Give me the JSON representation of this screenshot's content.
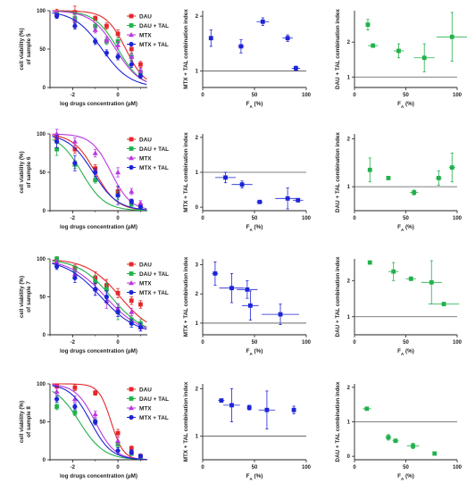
{
  "colors": {
    "DAU": "#e5262b",
    "DAU + TAL": "#22b14c",
    "MTX": "#b936e0",
    "MTX + TAL": "#1c24d6",
    "axis": "#222222",
    "refline": "#555555"
  },
  "legend_labels": [
    "DAU",
    "DAU + TAL",
    "MTX",
    "MTX + TAL"
  ],
  "chart_data": [
    {
      "id": "c1",
      "type": "line",
      "row": 1,
      "col": 1,
      "ylabel": "cell viability (%) of sample 5",
      "xlabel": "log drugs concentration (µM)",
      "xlim": [
        -3,
        1.3
      ],
      "ylim": [
        0,
        100
      ],
      "xticks": [
        "-2",
        "0"
      ],
      "yticks": [
        "0",
        "50",
        "100"
      ],
      "series": [
        {
          "name": "DAU",
          "marker": "square",
          "x": [
            -2.7,
            -1.9,
            -1.0,
            -0.5,
            0,
            0.6,
            1.0
          ],
          "y": [
            98,
            98,
            90,
            80,
            70,
            50,
            30
          ],
          "err": [
            4,
            8,
            3,
            4,
            5,
            5,
            4
          ],
          "curve": {
            "top": 100,
            "bottom": 0,
            "ec50": 0.35,
            "hill": 1.0
          }
        },
        {
          "name": "DAU + TAL",
          "marker": "square",
          "x": [
            -2.7,
            -1.9,
            -1.0,
            -0.5,
            0,
            0.6,
            1.0
          ],
          "y": [
            95,
            90,
            80,
            60,
            60,
            40,
            20
          ],
          "err": [
            3,
            5,
            4,
            4,
            5,
            5,
            3
          ],
          "curve": {
            "top": 100,
            "bottom": 0,
            "ec50": 0.0,
            "hill": 0.85
          }
        },
        {
          "name": "MTX",
          "marker": "triangle",
          "x": [
            -2.7,
            -1.9,
            -1.0,
            -0.5,
            0,
            0.6,
            1.0
          ],
          "y": [
            96,
            88,
            75,
            62,
            55,
            40,
            22
          ],
          "err": [
            3,
            5,
            4,
            4,
            5,
            4,
            3
          ],
          "curve": {
            "top": 100,
            "bottom": 0,
            "ec50": -0.1,
            "hill": 0.8
          }
        },
        {
          "name": "MTX + TAL",
          "marker": "circle",
          "x": [
            -2.7,
            -1.9,
            -1.0,
            -0.5,
            0,
            0.6,
            1.0
          ],
          "y": [
            93,
            80,
            60,
            45,
            40,
            30,
            15
          ],
          "err": [
            3,
            4,
            4,
            4,
            4,
            4,
            3
          ],
          "curve": {
            "top": 100,
            "bottom": 0,
            "ec50": -0.7,
            "hill": 0.7
          }
        }
      ]
    },
    {
      "id": "c2",
      "type": "scatter",
      "row": 1,
      "col": 2,
      "ylabel": "MTX + TAL combination index",
      "xlabel": "FA (%)",
      "xlim": [
        0,
        100
      ],
      "ylim": [
        0.7,
        2.1
      ],
      "xticks": [
        "0",
        "50",
        "100"
      ],
      "yticks": [
        "1",
        "2"
      ],
      "refline": 1,
      "series": [
        {
          "name": "MTX + TAL",
          "marker": "square",
          "x": [
            8,
            37,
            58,
            82,
            90
          ],
          "y": [
            1.6,
            1.45,
            1.9,
            1.6,
            1.05
          ],
          "xerr": [
            2,
            3,
            6,
            5,
            4
          ],
          "yerr": [
            0.15,
            0.12,
            0.07,
            0.06,
            0.04
          ]
        }
      ]
    },
    {
      "id": "c3",
      "type": "scatter",
      "row": 1,
      "col": 3,
      "ylabel": "DAU + TAL combination index",
      "xlabel": "FA (%)",
      "xlim": [
        0,
        100
      ],
      "ylim": [
        0.7,
        2.9
      ],
      "xticks": [
        "0",
        "50",
        "100"
      ],
      "yticks": [
        "1",
        "2"
      ],
      "refline": 1,
      "series": [
        {
          "name": "DAU + TAL",
          "marker": "square",
          "x": [
            13,
            18,
            43,
            68,
            95
          ],
          "y": [
            2.5,
            1.9,
            1.75,
            1.55,
            2.15
          ],
          "xerr": [
            2,
            5,
            5,
            10,
            15
          ],
          "yerr": [
            0.15,
            0.05,
            0.2,
            0.4,
            0.7
          ]
        }
      ]
    },
    {
      "id": "c4",
      "type": "line",
      "row": 2,
      "col": 1,
      "ylabel": "cell viability (%) of sample 6",
      "xlabel": "log drugs concentration (µM)",
      "xlim": [
        -3,
        1.3
      ],
      "ylim": [
        0,
        100
      ],
      "xticks": [
        "-2",
        "0"
      ],
      "yticks": [
        "0",
        "50",
        "100"
      ],
      "series": [
        {
          "name": "DAU",
          "marker": "square",
          "x": [
            -2.7,
            -1.9,
            -1.0,
            0,
            0.6,
            1.0
          ],
          "y": [
            95,
            80,
            55,
            25,
            12,
            5
          ],
          "err": [
            5,
            5,
            5,
            5,
            3,
            2
          ],
          "curve": {
            "top": 100,
            "bottom": 0,
            "ec50": -1.0,
            "hill": 0.9
          }
        },
        {
          "name": "DAU + TAL",
          "marker": "square",
          "x": [
            -2.7,
            -1.9,
            -1.0,
            0,
            0.6,
            1.0
          ],
          "y": [
            80,
            60,
            40,
            20,
            8,
            3
          ],
          "err": [
            8,
            5,
            4,
            5,
            2,
            2
          ],
          "curve": {
            "top": 100,
            "bottom": 0,
            "ec50": -1.6,
            "hill": 0.85
          }
        },
        {
          "name": "MTX",
          "marker": "triangle",
          "x": [
            -2.7,
            -1.9,
            -1.0,
            0,
            0.6,
            1.0
          ],
          "y": [
            100,
            90,
            75,
            50,
            25,
            10
          ],
          "err": [
            6,
            5,
            5,
            6,
            4,
            3
          ],
          "curve": {
            "top": 100,
            "bottom": 0,
            "ec50": -0.3,
            "hill": 1.0
          }
        },
        {
          "name": "MTX + TAL",
          "marker": "circle",
          "x": [
            -2.7,
            -1.9,
            -1.0,
            0,
            0.6,
            1.0
          ],
          "y": [
            90,
            62,
            50,
            20,
            12,
            5
          ],
          "err": [
            8,
            10,
            5,
            12,
            3,
            2
          ],
          "curve": {
            "top": 100,
            "bottom": 0,
            "ec50": -1.1,
            "hill": 0.8
          }
        }
      ]
    },
    {
      "id": "c5",
      "type": "scatter",
      "row": 2,
      "col": 2,
      "ylabel": "MTX + TAL combination index",
      "xlabel": "FA (%)",
      "xlim": [
        0,
        100
      ],
      "ylim": [
        -0.1,
        2.1
      ],
      "xticks": [
        "0",
        "50",
        "100"
      ],
      "yticks": [
        "0",
        "1",
        "2"
      ],
      "refline": 1,
      "series": [
        {
          "name": "MTX + TAL",
          "marker": "square",
          "x": [
            22,
            38,
            55,
            82,
            92
          ],
          "y": [
            0.85,
            0.65,
            0.15,
            0.25,
            0.2
          ],
          "xerr": [
            10,
            10,
            3,
            12,
            5
          ],
          "yerr": [
            0.15,
            0.1,
            0.03,
            0.3,
            0.05
          ]
        }
      ]
    },
    {
      "id": "c6",
      "type": "scatter",
      "row": 2,
      "col": 3,
      "ylabel": "DAU + TAL combination index",
      "xlabel": "FA (%)",
      "xlim": [
        0,
        100
      ],
      "ylim": [
        0.5,
        2.1
      ],
      "xticks": [
        "0",
        "50",
        "100"
      ],
      "yticks": [
        "1",
        "2"
      ],
      "refline": 1,
      "series": [
        {
          "name": "DAU + TAL",
          "marker": "square",
          "x": [
            15,
            33,
            58,
            82,
            95
          ],
          "y": [
            1.35,
            1.18,
            0.88,
            1.18,
            1.4
          ],
          "xerr": [
            2,
            2,
            4,
            3,
            3
          ],
          "yerr": [
            0.25,
            0.03,
            0.05,
            0.15,
            0.3
          ]
        }
      ]
    },
    {
      "id": "c7",
      "type": "line",
      "row": 3,
      "col": 1,
      "ylabel": "cell viability (%) of sample 7",
      "xlabel": "log drugs concentration (µM)",
      "xlim": [
        -3,
        1.3
      ],
      "ylim": [
        0,
        100
      ],
      "xticks": [
        "-2",
        "0"
      ],
      "yticks": [
        "0",
        "50",
        "100"
      ],
      "series": [
        {
          "name": "DAU",
          "marker": "square",
          "x": [
            -2.7,
            -1.9,
            -1.0,
            -0.5,
            0,
            0.6,
            1.0
          ],
          "y": [
            98,
            88,
            75,
            65,
            55,
            45,
            40
          ],
          "err": [
            3,
            4,
            8,
            8,
            6,
            5,
            5
          ],
          "curve": {
            "top": 100,
            "bottom": 0,
            "ec50": 0.1,
            "hill": 0.6
          }
        },
        {
          "name": "DAU + TAL",
          "marker": "square",
          "x": [
            -2.7,
            -1.9,
            -1.0,
            -0.5,
            0,
            0.6,
            1.0
          ],
          "y": [
            100,
            85,
            70,
            60,
            30,
            20,
            15
          ],
          "err": [
            3,
            5,
            8,
            8,
            10,
            5,
            5
          ],
          "curve": {
            "top": 100,
            "bottom": 0,
            "ec50": -0.3,
            "hill": 0.6
          }
        },
        {
          "name": "MTX",
          "marker": "triangle",
          "x": [
            -2.7,
            -1.9,
            -1.0,
            -0.5,
            0,
            0.6,
            1.0
          ],
          "y": [
            95,
            80,
            60,
            45,
            35,
            30,
            10
          ],
          "err": [
            4,
            6,
            8,
            10,
            6,
            5,
            5
          ],
          "curve": {
            "top": 100,
            "bottom": 0,
            "ec50": -0.55,
            "hill": 0.55
          }
        },
        {
          "name": "MTX + TAL",
          "marker": "circle",
          "x": [
            -2.7,
            -1.9,
            -1.0,
            -0.5,
            0,
            0.6,
            1.0
          ],
          "y": [
            90,
            75,
            60,
            50,
            30,
            15,
            10
          ],
          "err": [
            4,
            6,
            8,
            8,
            6,
            5,
            5
          ],
          "curve": {
            "top": 100,
            "bottom": 0,
            "ec50": -0.75,
            "hill": 0.55
          }
        }
      ]
    },
    {
      "id": "c8",
      "type": "scatter",
      "row": 3,
      "col": 2,
      "ylabel": "MTX + TAL combination index",
      "xlabel": "FA (%)",
      "xlim": [
        0,
        100
      ],
      "ylim": [
        0.6,
        3.2
      ],
      "xticks": [
        "0",
        "50",
        "100"
      ],
      "yticks": [
        "1",
        "2",
        "3"
      ],
      "refline": 1,
      "series": [
        {
          "name": "MTX + TAL",
          "marker": "square",
          "x": [
            12,
            28,
            43,
            46,
            75
          ],
          "y": [
            2.7,
            2.2,
            2.15,
            1.6,
            1.3
          ],
          "xerr": [
            3,
            12,
            10,
            8,
            18
          ],
          "yerr": [
            0.4,
            0.5,
            0.3,
            0.5,
            0.35
          ]
        }
      ]
    },
    {
      "id": "c9",
      "type": "scatter",
      "row": 3,
      "col": 3,
      "ylabel": "DAU + TAL combination index",
      "xlabel": "FA (%)",
      "xlim": [
        0,
        100
      ],
      "ylim": [
        0.5,
        2.6
      ],
      "xticks": [
        "0",
        "50",
        "100"
      ],
      "yticks": [
        "1",
        "2"
      ],
      "refline": 1,
      "series": [
        {
          "name": "DAU + TAL",
          "marker": "square",
          "x": [
            15,
            38,
            55,
            75,
            87
          ],
          "y": [
            2.5,
            2.25,
            2.05,
            1.95,
            1.35
          ],
          "xerr": [
            1,
            5,
            5,
            10,
            15
          ],
          "yerr": [
            0.04,
            0.25,
            0.05,
            0.6,
            0.05
          ]
        }
      ]
    },
    {
      "id": "c10",
      "type": "line",
      "row": 4,
      "col": 1,
      "ylabel": "cell viability (%) of sample 8",
      "xlabel": "log drugs concentration (µM)",
      "xlim": [
        -3,
        1.3
      ],
      "ylim": [
        0,
        100
      ],
      "xticks": [
        "-2",
        "0"
      ],
      "yticks": [
        "0",
        "50",
        "100"
      ],
      "series": [
        {
          "name": "DAU",
          "marker": "square",
          "x": [
            -2.7,
            -1.9,
            -1.0,
            0,
            0.6,
            1.0
          ],
          "y": [
            97,
            95,
            88,
            35,
            15,
            5
          ],
          "err": [
            3,
            4,
            3,
            5,
            3,
            2
          ],
          "curve": {
            "top": 100,
            "bottom": 0,
            "ec50": -0.3,
            "hill": 1.6
          }
        },
        {
          "name": "DAU + TAL",
          "marker": "square",
          "x": [
            -2.7,
            -1.9,
            -1.0,
            0,
            0.6,
            1.0
          ],
          "y": [
            70,
            62,
            50,
            20,
            8,
            3
          ],
          "err": [
            4,
            4,
            4,
            4,
            2,
            2
          ],
          "curve": {
            "top": 100,
            "bottom": 0,
            "ec50": -1.7,
            "hill": 0.8
          }
        },
        {
          "name": "MTX",
          "marker": "triangle",
          "x": [
            -2.7,
            -1.9,
            -1.0,
            0,
            0.6,
            1.0
          ],
          "y": [
            90,
            80,
            60,
            25,
            10,
            5
          ],
          "err": [
            4,
            4,
            4,
            5,
            3,
            2
          ],
          "curve": {
            "top": 100,
            "bottom": 0,
            "ec50": -1.0,
            "hill": 1.0
          }
        },
        {
          "name": "MTX + TAL",
          "marker": "circle",
          "x": [
            -2.7,
            -1.9,
            -1.0,
            0,
            0.6,
            1.0
          ],
          "y": [
            80,
            70,
            50,
            12,
            10,
            5
          ],
          "err": [
            4,
            4,
            4,
            4,
            3,
            2
          ],
          "curve": {
            "top": 100,
            "bottom": 0,
            "ec50": -1.2,
            "hill": 0.95
          }
        }
      ]
    },
    {
      "id": "c11",
      "type": "scatter",
      "row": 4,
      "col": 2,
      "ylabel": "MTX + TAL combination index",
      "xlabel": "FA (%)",
      "xlim": [
        0,
        100
      ],
      "ylim": [
        0.5,
        2.1
      ],
      "xticks": [
        "0",
        "50",
        "100"
      ],
      "yticks": [
        "1",
        "2"
      ],
      "refline": 1,
      "series": [
        {
          "name": "MTX + TAL",
          "marker": "square",
          "x": [
            18,
            28,
            45,
            62,
            88
          ],
          "y": [
            1.75,
            1.65,
            1.6,
            1.55,
            1.55
          ],
          "xerr": [
            3,
            8,
            2,
            8,
            2
          ],
          "yerr": [
            0.02,
            0.35,
            0.05,
            0.4,
            0.08
          ]
        }
      ]
    },
    {
      "id": "c12",
      "type": "scatter",
      "row": 4,
      "col": 3,
      "ylabel": "DAU + TAL combination index",
      "xlabel": "FA (%)",
      "xlim": [
        0,
        100
      ],
      "ylim": [
        -0.1,
        2.1
      ],
      "xticks": [
        "0",
        "50",
        "100"
      ],
      "yticks": [
        "0",
        "1",
        "2"
      ],
      "refline": 1,
      "series": [
        {
          "name": "DAU + TAL",
          "marker": "square",
          "x": [
            12,
            33,
            40,
            57,
            78
          ],
          "y": [
            1.38,
            0.55,
            0.45,
            0.3,
            0.08
          ],
          "xerr": [
            4,
            3,
            3,
            6,
            1
          ],
          "yerr": [
            0.03,
            0.08,
            0.05,
            0.08,
            0.02
          ]
        }
      ]
    }
  ]
}
